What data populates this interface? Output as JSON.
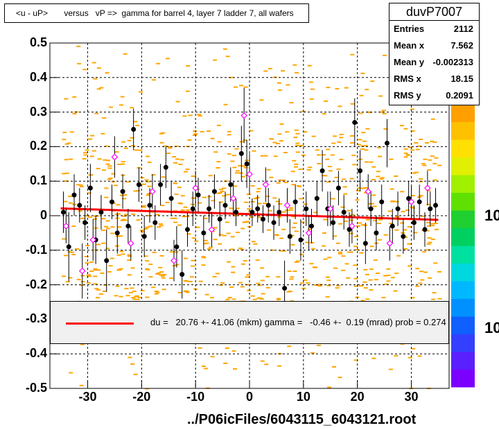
{
  "title": "<u - uP>       versus   vP =>  gamma for barrel 4, layer 7 ladder 7, all wafers",
  "stats": {
    "name": "duvP7007",
    "rows": [
      {
        "label": "Entries",
        "value": "2112"
      },
      {
        "label": "Mean x",
        "value": "7.562"
      },
      {
        "label": "Mean y",
        "value": "-0.002313"
      },
      {
        "label": "RMS x",
        "value": "18.15"
      },
      {
        "label": "RMS y",
        "value": "0.2091"
      }
    ]
  },
  "fit_legend": "du =   20.76 +- 41.06 (mkm) gamma =   -0.46 +-  0.19 (mrad) prob = 0.274",
  "footer": "../P06icFiles/6043115_6043121.root",
  "z_axis_labels": [
    "10",
    "10"
  ],
  "colors": {
    "background_cells": "#ffa500",
    "black_points": "#000000",
    "magenta_points": "#ff00ff",
    "fit_line": "#ff0000"
  },
  "chart_data": {
    "type": "scatter",
    "xlim": [
      -37,
      37
    ],
    "ylim": [
      -0.5,
      0.5
    ],
    "x_ticks": [
      "-30",
      "-20",
      "-10",
      "0",
      "10",
      "20",
      "30"
    ],
    "x_tick_values": [
      -30,
      -20,
      -10,
      0,
      10,
      20,
      30
    ],
    "y_ticks": [
      "0.5",
      "0.4",
      "0.3",
      "0.2",
      "0.1",
      "0",
      "-0.1",
      "-0.2",
      "-0.3",
      "-0.4",
      "-0.5"
    ],
    "y_tick_values": [
      0.5,
      0.4,
      0.3,
      0.2,
      0.1,
      0,
      -0.1,
      -0.2,
      -0.3,
      -0.4,
      -0.5
    ],
    "grid": true,
    "fit_line": {
      "x": [
        -35,
        35
      ],
      "y": [
        0.021,
        -0.012
      ]
    },
    "black_points": [
      {
        "x": -34.5,
        "y": 0.01,
        "err": 0.06
      },
      {
        "x": -33.5,
        "y": -0.09,
        "err": 0.1
      },
      {
        "x": -32.5,
        "y": 0.06,
        "err": 0.06
      },
      {
        "x": -31.5,
        "y": 0.03,
        "err": 0.05
      },
      {
        "x": -30.5,
        "y": -0.02,
        "err": 0.05
      },
      {
        "x": -29.5,
        "y": 0.08,
        "err": 0.07
      },
      {
        "x": -28.5,
        "y": -0.07,
        "err": 0.07
      },
      {
        "x": -27.5,
        "y": 0.01,
        "err": 0.05
      },
      {
        "x": -26.5,
        "y": -0.13,
        "err": 0.09
      },
      {
        "x": -25.5,
        "y": 0.04,
        "err": 0.05
      },
      {
        "x": -24.5,
        "y": -0.05,
        "err": 0.06
      },
      {
        "x": -23.5,
        "y": 0.07,
        "err": 0.05
      },
      {
        "x": -22.5,
        "y": -0.03,
        "err": 0.05
      },
      {
        "x": -21.5,
        "y": 0.25,
        "err": 0.06
      },
      {
        "x": -20.5,
        "y": 0.09,
        "err": 0.05
      },
      {
        "x": -19.5,
        "y": -0.06,
        "err": 0.06
      },
      {
        "x": -18.5,
        "y": 0.03,
        "err": 0.05
      },
      {
        "x": -17.5,
        "y": -0.02,
        "err": 0.05
      },
      {
        "x": -16.5,
        "y": 0.09,
        "err": 0.06
      },
      {
        "x": -15.5,
        "y": 0.14,
        "err": 0.06
      },
      {
        "x": -14.5,
        "y": 0.05,
        "err": 0.05
      },
      {
        "x": -13.5,
        "y": -0.09,
        "err": 0.06
      },
      {
        "x": -12.5,
        "y": -0.17,
        "err": 0.07
      },
      {
        "x": -11.5,
        "y": -0.04,
        "err": 0.05
      },
      {
        "x": -10.5,
        "y": 0.02,
        "err": 0.05
      },
      {
        "x": -9.5,
        "y": 0.06,
        "err": 0.05
      },
      {
        "x": -8.5,
        "y": -0.05,
        "err": 0.05
      },
      {
        "x": -7.5,
        "y": 0.02,
        "err": 0.04
      },
      {
        "x": -6.5,
        "y": 0.07,
        "err": 0.05
      },
      {
        "x": -5.5,
        "y": -0.01,
        "err": 0.05
      },
      {
        "x": -4.5,
        "y": 0.03,
        "err": 0.04
      },
      {
        "x": -3.5,
        "y": 0.09,
        "err": 0.05
      },
      {
        "x": -2.5,
        "y": 0.01,
        "err": 0.04
      },
      {
        "x": -1.5,
        "y": 0.18,
        "err": 0.08
      },
      {
        "x": -0.5,
        "y": 0.15,
        "err": 0.07
      },
      {
        "x": 0.5,
        "y": 0.01,
        "err": 0.04
      },
      {
        "x": 1.5,
        "y": 0.02,
        "err": 0.04
      },
      {
        "x": 2.5,
        "y": -0.01,
        "err": 0.04
      },
      {
        "x": 3.5,
        "y": 0.03,
        "err": 0.05
      },
      {
        "x": 4.5,
        "y": -0.02,
        "err": 0.05
      },
      {
        "x": 5.5,
        "y": 0.01,
        "err": 0.04
      },
      {
        "x": 6.5,
        "y": -0.21,
        "err": 0.08
      },
      {
        "x": 7.5,
        "y": -0.06,
        "err": 0.05
      },
      {
        "x": 8.5,
        "y": 0.04,
        "err": 0.05
      },
      {
        "x": 9.5,
        "y": -0.07,
        "err": 0.06
      },
      {
        "x": 10.5,
        "y": 0.02,
        "err": 0.05
      },
      {
        "x": 11.5,
        "y": -0.03,
        "err": 0.05
      },
      {
        "x": 12.5,
        "y": 0.05,
        "err": 0.05
      },
      {
        "x": 13.5,
        "y": 0.13,
        "err": 0.06
      },
      {
        "x": 14.5,
        "y": 0.02,
        "err": 0.05
      },
      {
        "x": 15.5,
        "y": -0.02,
        "err": 0.05
      },
      {
        "x": 16.5,
        "y": 0.08,
        "err": 0.05
      },
      {
        "x": 17.5,
        "y": 0.01,
        "err": 0.05
      },
      {
        "x": 18.5,
        "y": -0.04,
        "err": 0.05
      },
      {
        "x": 19.5,
        "y": 0.27,
        "err": 0.07
      },
      {
        "x": 20.5,
        "y": 0.13,
        "err": 0.06
      },
      {
        "x": 21.5,
        "y": -0.08,
        "err": 0.06
      },
      {
        "x": 22.5,
        "y": 0.02,
        "err": 0.05
      },
      {
        "x": 23.5,
        "y": -0.05,
        "err": 0.05
      },
      {
        "x": 24.5,
        "y": 0.04,
        "err": 0.05
      },
      {
        "x": 25.5,
        "y": 0.21,
        "err": 0.07
      },
      {
        "x": 26.5,
        "y": -0.03,
        "err": 0.05
      },
      {
        "x": 27.5,
        "y": 0.02,
        "err": 0.05
      },
      {
        "x": 28.5,
        "y": -0.06,
        "err": 0.05
      },
      {
        "x": 29.5,
        "y": 0.05,
        "err": 0.05
      },
      {
        "x": 30.5,
        "y": -0.02,
        "err": 0.05
      },
      {
        "x": 31.5,
        "y": 0.04,
        "err": 0.05
      },
      {
        "x": 32.5,
        "y": -0.04,
        "err": 0.05
      },
      {
        "x": 33.5,
        "y": 0.02,
        "err": 0.05
      },
      {
        "x": 34.5,
        "y": 0.03,
        "err": 0.05
      }
    ],
    "magenta_points": [
      {
        "x": -34.0,
        "y": -0.03,
        "err": 0.05
      },
      {
        "x": -31.0,
        "y": -0.16,
        "err": 0.08
      },
      {
        "x": -29.0,
        "y": -0.07,
        "err": 0.06
      },
      {
        "x": -25.0,
        "y": 0.17,
        "err": 0.06
      },
      {
        "x": -22.0,
        "y": -0.08,
        "err": 0.05
      },
      {
        "x": -18.0,
        "y": 0.07,
        "err": 0.05
      },
      {
        "x": -14.0,
        "y": -0.13,
        "err": 0.06
      },
      {
        "x": -10.0,
        "y": 0.08,
        "err": 0.05
      },
      {
        "x": -7.0,
        "y": -0.04,
        "err": 0.05
      },
      {
        "x": -3.0,
        "y": 0.05,
        "err": 0.05
      },
      {
        "x": -1.0,
        "y": 0.29,
        "err": 0.08
      },
      {
        "x": 0.0,
        "y": 0.12,
        "err": 0.06
      },
      {
        "x": 3.0,
        "y": 0.09,
        "err": 0.05
      },
      {
        "x": 7.0,
        "y": 0.03,
        "err": 0.05
      },
      {
        "x": 11.0,
        "y": -0.05,
        "err": 0.05
      },
      {
        "x": 15.0,
        "y": 0.02,
        "err": 0.05
      },
      {
        "x": 19.0,
        "y": -0.03,
        "err": 0.05
      },
      {
        "x": 22.0,
        "y": 0.07,
        "err": 0.05
      },
      {
        "x": 26.0,
        "y": -0.08,
        "err": 0.05
      },
      {
        "x": 30.0,
        "y": 0.04,
        "err": 0.05
      },
      {
        "x": 33.0,
        "y": 0.08,
        "err": 0.05
      }
    ]
  }
}
